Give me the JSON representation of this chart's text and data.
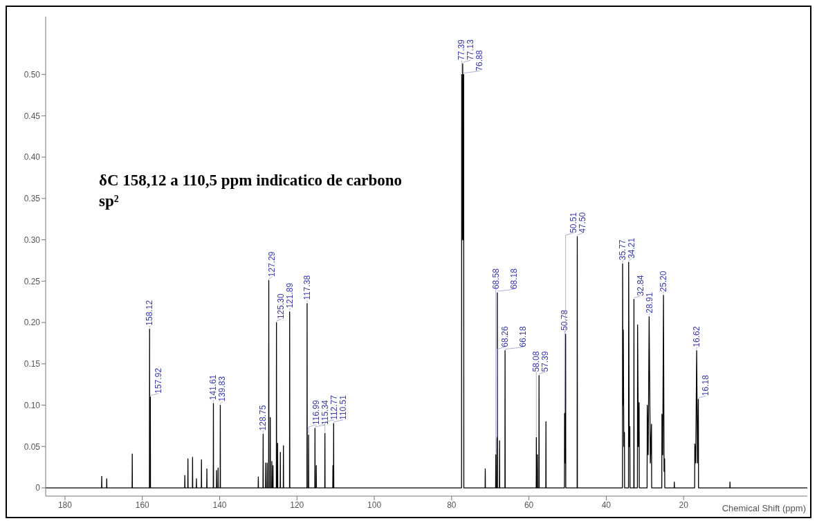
{
  "chart_data": {
    "type": "line",
    "xlabel": "Chemical Shift (ppm)",
    "xlim": [
      185,
      -12
    ],
    "xticks": [
      180,
      160,
      140,
      120,
      100,
      80,
      60,
      40,
      20
    ],
    "ylim": [
      -0.01,
      0.57
    ],
    "yticks": [
      0,
      {
        "value": 0.05,
        "label": "0.05"
      },
      {
        "value": 0.1,
        "label": "0.10"
      },
      {
        "value": 0.15,
        "label": "0.15"
      },
      {
        "value": 0.2,
        "label": "0.20"
      },
      {
        "value": 0.25,
        "label": "0.25"
      },
      {
        "value": 0.3,
        "label": "0.30"
      },
      {
        "value": 0.35,
        "label": "0.35"
      },
      {
        "value": 0.4,
        "label": "0.40"
      },
      {
        "value": 0.45,
        "label": "0.45"
      },
      {
        "value": 0.5,
        "label": "0.50"
      }
    ],
    "series": [
      {
        "color": "#000000",
        "x": [
          185,
          170.54,
          170.5,
          170.46,
          169.24,
          169.2,
          169.16,
          162.64,
          162.6,
          162.56,
          158.16,
          158.12,
          158.08,
          157.96,
          157.92,
          157.88,
          149.04,
          149,
          148.96,
          148.24,
          148.2,
          148.16,
          147.04,
          147,
          146.96,
          146.04,
          146,
          145.96,
          144.74,
          144.7,
          144.66,
          143.34,
          143.3,
          143.26,
          141.65,
          141.61,
          141.57,
          140.84,
          140.8,
          140.76,
          140.44,
          140.4,
          140.36,
          139.87,
          139.83,
          139.79,
          130.04,
          130,
          129.96,
          128.79,
          128.75,
          128.71,
          128.14,
          128.1,
          128.06,
          127.74,
          127.7,
          127.66,
          127.33,
          127.29,
          127.25,
          126.94,
          126.9,
          126.86,
          126.54,
          126.5,
          126.46,
          126.24,
          126.2,
          126.16,
          125.34,
          125.3,
          125.26,
          125.04,
          125,
          124.96,
          124.34,
          124.3,
          124.26,
          123.54,
          123.5,
          123.46,
          121.93,
          121.89,
          121.85,
          117.42,
          117.38,
          117.34,
          117.03,
          116.99,
          116.95,
          115.38,
          115.34,
          115.3,
          115.04,
          115,
          114.96,
          112.81,
          112.77,
          112.73,
          110.74,
          110.7,
          110.66,
          110.55,
          110.51,
          110.47,
          77.43,
          77.39,
          77.26,
          77.13,
          77.01,
          76.88,
          76.84,
          71.34,
          71.3,
          71.26,
          68.62,
          68.58,
          68.54,
          68.3,
          68.26,
          68.22,
          68.22,
          68.18,
          68.14,
          67.64,
          67.6,
          67.56,
          66.22,
          66.18,
          66.14,
          58.12,
          58.08,
          58.04,
          57.84,
          57.8,
          57.76,
          57.43,
          57.39,
          57.35,
          55.64,
          55.6,
          55.56,
          50.82,
          50.78,
          50.645,
          50.51,
          50.47,
          47.54,
          47.5,
          47.46,
          35.81,
          35.77,
          35.685,
          35.6,
          35.45,
          35.3,
          35.26,
          34.25,
          34.21,
          34.055,
          33.9,
          33.86,
          32.88,
          32.84,
          32.8,
          31.94,
          31.9,
          31.7,
          31.5,
          31.46,
          29.44,
          29.4,
          29.155,
          28.91,
          28.6,
          28.3,
          28.26,
          25.64,
          25.6,
          25.4,
          25.2,
          25.05,
          24.9,
          24.86,
          22.44,
          22.4,
          22.36,
          17.14,
          17.1,
          16.86,
          16.62,
          16.4,
          16.18,
          16.14,
          8.04,
          8,
          7.96,
          -12
        ],
        "values": [
          0,
          0,
          0.014,
          0,
          0,
          0.011,
          0,
          0,
          0.041,
          0,
          0,
          0.192,
          0,
          0,
          0.11,
          0,
          0,
          0.015,
          0,
          0,
          0.035,
          0,
          0,
          0.037,
          0,
          0,
          0.011,
          0,
          0,
          0.034,
          0,
          0,
          0.023,
          0,
          0,
          0.102,
          0,
          0,
          0.021,
          0,
          0,
          0.024,
          0,
          0,
          0.1,
          0,
          0,
          0.013,
          0,
          0,
          0.065,
          0,
          0,
          0.03,
          0,
          0,
          0.03,
          0,
          0,
          0.251,
          0,
          0,
          0.085,
          0,
          0,
          0.032,
          0,
          0,
          0.027,
          0,
          0,
          0.2,
          0,
          0,
          0.054,
          0,
          0,
          0.043,
          0,
          0,
          0.051,
          0,
          0,
          0.213,
          0,
          0,
          0.223,
          0,
          0,
          0.064,
          0,
          0,
          0.072,
          0,
          0,
          0.027,
          0,
          0,
          0.066,
          0,
          0,
          0.027,
          0,
          0,
          0.078,
          0,
          0,
          0.5,
          0.3,
          0.513,
          0.3,
          0.5,
          0,
          0,
          0.023,
          0,
          0,
          0.04,
          0,
          0,
          0.06,
          0,
          0,
          0.236,
          0,
          0,
          0.057,
          0,
          0,
          0.166,
          0,
          0,
          0.061,
          0,
          0,
          0.04,
          0,
          0,
          0.136,
          0,
          0,
          0.08,
          0,
          0,
          0.09,
          0.03,
          0.186,
          0,
          0,
          0.304,
          0,
          0,
          0.271,
          0.1,
          0.191,
          0.05,
          0.067,
          0,
          0,
          0.273,
          0.05,
          0.074,
          0,
          0,
          0.228,
          0,
          0,
          0.197,
          0.05,
          0.103,
          0,
          0,
          0.1,
          0.04,
          0.207,
          0.03,
          0.077,
          0,
          0,
          0.089,
          0.04,
          0.233,
          0.02,
          0.035,
          0,
          0,
          0.007,
          0,
          0,
          0.053,
          0.03,
          0.166,
          0.03,
          0.107,
          0,
          0,
          0.007,
          0,
          0
        ]
      }
    ],
    "annotations": [
      "δC 158,12 a 110,5 ppm indicatico de carbono sp²",
      {
        "text": "158.12",
        "x": 158.12,
        "y": 0.192
      },
      {
        "text": "157.92",
        "x": 157.92,
        "y": 0.11
      },
      {
        "text": "141.61",
        "x": 141.61,
        "y": 0.102
      },
      {
        "text": "139.83",
        "x": 139.83,
        "y": 0.1
      },
      {
        "text": "128.75",
        "x": 128.75,
        "y": 0.065
      },
      {
        "text": "127.29",
        "x": 127.29,
        "y": 0.251
      },
      {
        "text": "125.30",
        "x": 125.3,
        "y": 0.2
      },
      {
        "text": "121.89",
        "x": 121.89,
        "y": 0.213
      },
      {
        "text": "117.38",
        "x": 117.38,
        "y": 0.223
      },
      {
        "text": "116.99",
        "x": 116.99,
        "y": 0.064
      },
      {
        "text": "115.34",
        "x": 115.34,
        "y": 0.072
      },
      {
        "text": "112.77",
        "x": 112.77,
        "y": 0.066
      },
      {
        "text": "110.51",
        "x": 110.51,
        "y": 0.078
      },
      {
        "text": "77.39",
        "x": 77.39,
        "y": 0.5
      },
      {
        "text": "77.13",
        "x": 77.13,
        "y": 0.513
      },
      {
        "text": "76.88",
        "x": 76.88,
        "y": 0.5
      },
      {
        "text": "68.58",
        "x": 68.58,
        "y": 0.04
      },
      {
        "text": "68.26",
        "x": 68.26,
        "y": 0.06
      },
      {
        "text": "68.18",
        "x": 68.18,
        "y": 0.236
      },
      {
        "text": "66.18",
        "x": 66.18,
        "y": 0.166
      },
      {
        "text": "58.08",
        "x": 58.08,
        "y": 0.061
      },
      {
        "text": "57.39",
        "x": 57.39,
        "y": 0.136
      },
      {
        "text": "50.78",
        "x": 50.78,
        "y": 0.09
      },
      {
        "text": "50.51",
        "x": 50.51,
        "y": 0.186
      },
      {
        "text": "47.50",
        "x": 47.5,
        "y": 0.304
      },
      {
        "text": "35.77",
        "x": 35.77,
        "y": 0.271
      },
      {
        "text": "34.21",
        "x": 34.21,
        "y": 0.273
      },
      {
        "text": "32.84",
        "x": 32.84,
        "y": 0.228
      },
      {
        "text": "28.91",
        "x": 28.91,
        "y": 0.207
      },
      {
        "text": "25.20",
        "x": 25.2,
        "y": 0.233
      },
      {
        "text": "16.62",
        "x": 16.62,
        "y": 0.166
      },
      {
        "text": "16.18",
        "x": 16.18,
        "y": 0.107
      }
    ]
  }
}
